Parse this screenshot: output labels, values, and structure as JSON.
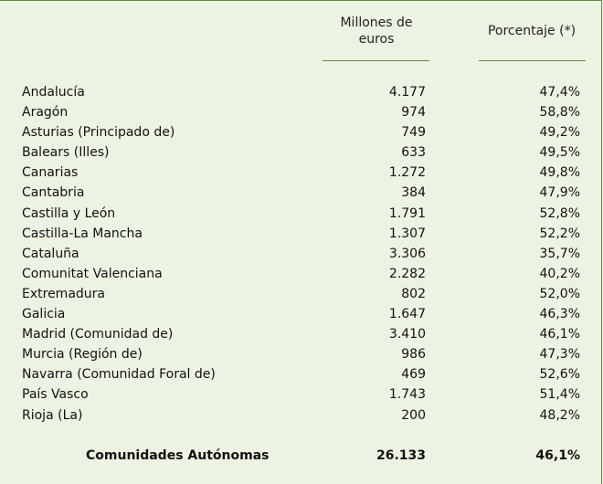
{
  "header": {
    "col_value": "Millones de euros",
    "col_pct": "Porcentaje (*)"
  },
  "rows": [
    {
      "name": "Andalucía",
      "value": "4.177",
      "pct": "47,4%"
    },
    {
      "name": "Aragón",
      "value": "974",
      "pct": "58,8%"
    },
    {
      "name": "Asturias (Principado de)",
      "value": "749",
      "pct": "49,2%"
    },
    {
      "name": "Balears (Illes)",
      "value": "633",
      "pct": "49,5%"
    },
    {
      "name": "Canarias",
      "value": "1.272",
      "pct": "49,8%"
    },
    {
      "name": "Cantabria",
      "value": "384",
      "pct": "47,9%"
    },
    {
      "name": "Castilla y León",
      "value": "1.791",
      "pct": "52,8%"
    },
    {
      "name": "Castilla-La Mancha",
      "value": "1.307",
      "pct": "52,2%"
    },
    {
      "name": "Cataluña",
      "value": "3.306",
      "pct": "35,7%"
    },
    {
      "name": "Comunitat Valenciana",
      "value": "2.282",
      "pct": "40,2%"
    },
    {
      "name": "Extremadura",
      "value": "802",
      "pct": "52,0%"
    },
    {
      "name": "Galicia",
      "value": "1.647",
      "pct": "46,3%"
    },
    {
      "name": "Madrid (Comunidad de)",
      "value": "3.410",
      "pct": "46,1%"
    },
    {
      "name": "Murcia (Región de)",
      "value": "986",
      "pct": "47,3%"
    },
    {
      "name": "Navarra (Comunidad Foral de)",
      "value": "469",
      "pct": "52,6%"
    },
    {
      "name": "País Vasco",
      "value": "1.743",
      "pct": "51,4%"
    },
    {
      "name": "Rioja (La)",
      "value": "200",
      "pct": "48,2%"
    }
  ],
  "total": {
    "name": "Comunidades Autónomas",
    "value": "26.133",
    "pct": "46,1%"
  }
}
